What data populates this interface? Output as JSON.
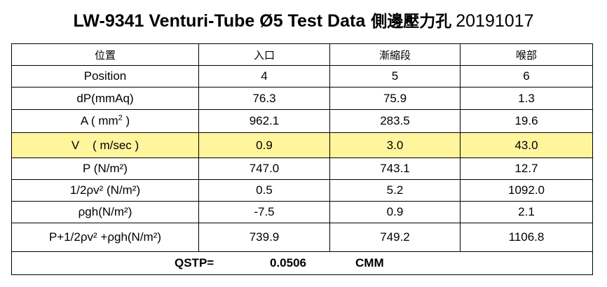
{
  "title": {
    "main": "LW-9341 Venturi-Tube Ø5 Test Data",
    "cjk": "側邊壓力孔",
    "date": "20191017"
  },
  "header": [
    "位置",
    "入口",
    "漸縮段",
    "喉部"
  ],
  "rows": [
    {
      "label": "Position",
      "values": [
        "4",
        "5",
        "6"
      ]
    },
    {
      "label": "dP(mmAq)",
      "values": [
        "76.3",
        "75.9",
        "1.3"
      ]
    },
    {
      "label_pre": "A ( mm",
      "label_sup": "2",
      "label_post": " )",
      "values": [
        "962.1",
        "283.5",
        "19.6"
      ]
    },
    {
      "label": "V    ( m/sec )",
      "values": [
        "0.9",
        "3.0",
        "43.0"
      ]
    },
    {
      "label": "P (N/m²)",
      "values": [
        "747.0",
        "743.1",
        "12.7"
      ]
    },
    {
      "label": "1/2ρv² (N/m²)",
      "values": [
        "0.5",
        "5.2",
        "1092.0"
      ]
    },
    {
      "label": "ρgh(N/m²)",
      "values": [
        "-7.5",
        "0.9",
        "2.1"
      ]
    },
    {
      "label": "P+1/2ρv² +ρgh(N/m²)",
      "values": [
        "739.9",
        "749.2",
        "1106.8"
      ]
    }
  ],
  "footer": {
    "label": "QSTP=",
    "value": "0.0506",
    "unit": "CMM"
  },
  "colors": {
    "highlight_row": "#fff59d",
    "border": "#000000"
  }
}
